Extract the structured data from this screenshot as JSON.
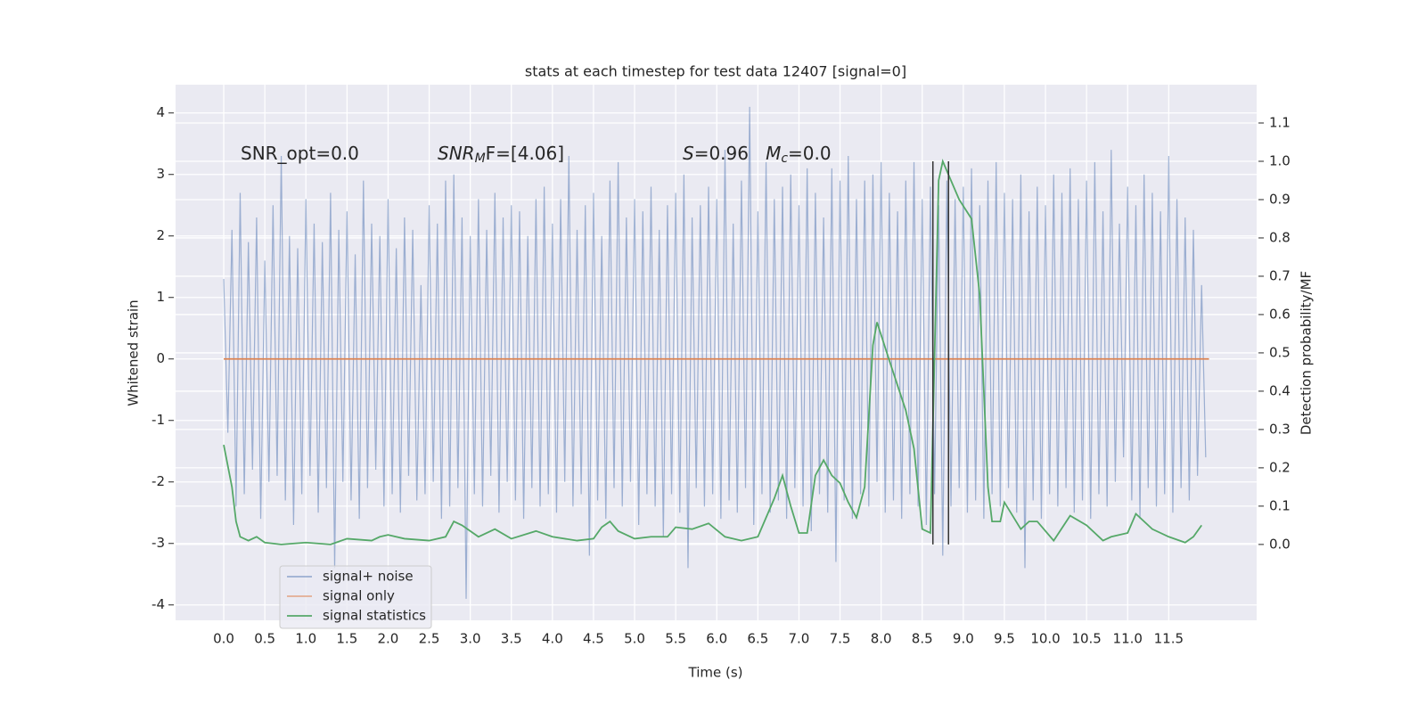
{
  "chart_data": {
    "type": "line",
    "title": "stats at each timestep for test data 12407 [signal=0]",
    "xlabel": "Time (s)",
    "ylabel": "Whitened strain",
    "y2label": "Detection probability/MF",
    "xlim": [
      -0.586,
      12.57
    ],
    "ylim": [
      -4.25,
      4.46
    ],
    "y2lim": [
      -0.198,
      1.2
    ],
    "xticks": [
      {
        "value": 0,
        "label": "0.0"
      },
      0.5,
      {
        "value": 1,
        "label": "1.0"
      },
      1.5,
      {
        "value": 2,
        "label": "2.0"
      },
      2.5,
      {
        "value": 3,
        "label": "3.0"
      },
      3.5,
      {
        "value": 4,
        "label": "4.0"
      },
      4.5,
      {
        "value": 5,
        "label": "5.0"
      },
      5.5,
      {
        "value": 6,
        "label": "6.0"
      },
      6.5,
      {
        "value": 7,
        "label": "7.0"
      },
      7.5,
      {
        "value": 8,
        "label": "8.0"
      },
      8.5,
      {
        "value": 9,
        "label": "9.0"
      },
      9.5,
      {
        "value": 10,
        "label": "10.0"
      },
      10.5,
      {
        "value": 11,
        "label": "11.0"
      },
      11.5
    ],
    "yticks": [
      -4,
      -3,
      -2,
      -1,
      0,
      1,
      2,
      3,
      4
    ],
    "y2ticks": [
      {
        "value": 0,
        "label": "0.0"
      },
      0.1,
      0.2,
      0.3,
      0.4,
      0.5,
      0.6,
      0.7,
      0.8,
      0.9,
      {
        "value": 1,
        "label": "1.0"
      },
      1.1
    ],
    "grid": true,
    "legend": "lower left",
    "annotations": [
      [
        {
          "text": "SNR_opt=0.0",
          "style": "normal"
        }
      ],
      [
        {
          "text": "SNR",
          "style": "italic"
        },
        {
          "text": "M",
          "style": "italic-sub"
        },
        {
          "text": "F=[4.06]",
          "style": "normal"
        }
      ],
      [
        {
          "text": "S",
          "style": "italic"
        },
        {
          "text": "=0.96   ",
          "style": "normal"
        },
        {
          "text": "M",
          "style": "italic"
        },
        {
          "text": "c",
          "style": "italic-sub"
        },
        {
          "text": "=0.0",
          "style": "normal"
        }
      ]
    ],
    "vlines": {
      "x": [
        8.63,
        8.82
      ],
      "y2": [
        0,
        1
      ],
      "color": "#333333"
    },
    "series": [
      {
        "name": "signal+ noise",
        "color": "#4c72b0",
        "axis": "y",
        "x": [
          0,
          0.05,
          0.1,
          0.15,
          0.2,
          0.25,
          0.3,
          0.35,
          0.4,
          0.45,
          0.5,
          0.55,
          0.6,
          0.65,
          0.7,
          0.75,
          0.8,
          0.85,
          0.9,
          0.95,
          1,
          1.05,
          1.1,
          1.15,
          1.2,
          1.25,
          1.3,
          1.35,
          1.4,
          1.45,
          1.5,
          1.55,
          1.6,
          1.65,
          1.7,
          1.75,
          1.8,
          1.85,
          1.9,
          1.95,
          2,
          2.05,
          2.1,
          2.15,
          2.2,
          2.25,
          2.3,
          2.35,
          2.4,
          2.45,
          2.5,
          2.55,
          2.6,
          2.65,
          2.7,
          2.75,
          2.8,
          2.85,
          2.9,
          2.95,
          3,
          3.05,
          3.1,
          3.15,
          3.2,
          3.25,
          3.3,
          3.35,
          3.4,
          3.45,
          3.5,
          3.55,
          3.6,
          3.65,
          3.7,
          3.75,
          3.8,
          3.85,
          3.9,
          3.95,
          4,
          4.05,
          4.1,
          4.15,
          4.2,
          4.25,
          4.3,
          4.35,
          4.4,
          4.45,
          4.5,
          4.55,
          4.6,
          4.65,
          4.7,
          4.75,
          4.8,
          4.85,
          4.9,
          4.95,
          5,
          5.05,
          5.1,
          5.15,
          5.2,
          5.25,
          5.3,
          5.35,
          5.4,
          5.45,
          5.5,
          5.55,
          5.6,
          5.65,
          5.7,
          5.75,
          5.8,
          5.85,
          5.9,
          5.95,
          6,
          6.05,
          6.1,
          6.15,
          6.2,
          6.25,
          6.3,
          6.35,
          6.4,
          6.45,
          6.5,
          6.55,
          6.6,
          6.65,
          6.7,
          6.75,
          6.8,
          6.85,
          6.9,
          6.95,
          7,
          7.05,
          7.1,
          7.15,
          7.2,
          7.25,
          7.3,
          7.35,
          7.4,
          7.45,
          7.5,
          7.55,
          7.6,
          7.65,
          7.7,
          7.75,
          7.8,
          7.85,
          7.9,
          7.95,
          8,
          8.05,
          8.1,
          8.15,
          8.2,
          8.25,
          8.3,
          8.35,
          8.4,
          8.45,
          8.5,
          8.55,
          8.6,
          8.65,
          8.7,
          8.75,
          8.8,
          8.85,
          8.9,
          8.95,
          9,
          9.05,
          9.1,
          9.15,
          9.2,
          9.25,
          9.3,
          9.35,
          9.4,
          9.45,
          9.5,
          9.55,
          9.6,
          9.65,
          9.7,
          9.75,
          9.8,
          9.85,
          9.9,
          9.95,
          10,
          10.05,
          10.1,
          10.15,
          10.2,
          10.25,
          10.3,
          10.35,
          10.4,
          10.45,
          10.5,
          10.55,
          10.6,
          10.65,
          10.7,
          10.75,
          10.8,
          10.85,
          10.9,
          10.95,
          11,
          11.05,
          11.1,
          11.15,
          11.2,
          11.25,
          11.3,
          11.35,
          11.4,
          11.45,
          11.5,
          11.55,
          11.6,
          11.65,
          11.7,
          11.75,
          11.8,
          11.85,
          11.9,
          11.95
        ],
        "values": [
          1.3,
          -1.2,
          2.1,
          -2.4,
          2.7,
          -2.2,
          1.9,
          -1.8,
          2.3,
          -2.6,
          1.6,
          -2.0,
          2.5,
          -1.9,
          3.3,
          -2.3,
          2.0,
          -2.7,
          1.8,
          -2.2,
          2.6,
          -1.9,
          2.2,
          -2.5,
          1.9,
          -2.1,
          2.7,
          -3.4,
          2.1,
          -2.0,
          2.4,
          -2.3,
          1.7,
          -2.6,
          2.9,
          -2.1,
          2.2,
          -1.8,
          2.0,
          -2.4,
          2.6,
          -2.2,
          1.8,
          -2.5,
          2.3,
          -1.9,
          2.1,
          -2.3,
          1.2,
          -2.2,
          2.5,
          -2.0,
          2.2,
          -2.6,
          2.9,
          -2.4,
          3.0,
          -2.1,
          2.3,
          -3.9,
          2.0,
          -2.2,
          2.6,
          -2.4,
          2.1,
          -1.9,
          2.7,
          -2.5,
          2.3,
          -2.0,
          2.5,
          -2.3,
          2.4,
          -2.6,
          2.0,
          -2.1,
          2.6,
          -2.4,
          2.8,
          -2.2,
          2.2,
          -2.5,
          2.6,
          -2.0,
          3.3,
          -2.4,
          2.1,
          -2.2,
          2.5,
          -3.2,
          2.7,
          -2.3,
          2.0,
          -2.6,
          2.9,
          -2.1,
          3.2,
          -2.4,
          2.3,
          -2.0,
          2.6,
          -2.7,
          2.4,
          -2.2,
          2.8,
          -2.4,
          2.1,
          -2.9,
          2.5,
          -2.2,
          2.7,
          -2.5,
          3.0,
          -3.4,
          2.3,
          -2.1,
          2.5,
          -2.4,
          2.8,
          -2.2,
          2.6,
          -2.6,
          3.4,
          -2.3,
          2.2,
          -2.5,
          2.9,
          -2.1,
          4.1,
          -2.7,
          2.4,
          -2.2,
          3.2,
          -2.5,
          2.6,
          -2.3,
          2.8,
          -2.6,
          3.0,
          -2.1,
          2.5,
          -2.4,
          3.1,
          -2.8,
          2.7,
          -2.2,
          2.3,
          -2.5,
          3.1,
          -3.3,
          2.9,
          -2.3,
          3.3,
          -2.6,
          2.6,
          -2.2,
          2.9,
          -2.4,
          3.0,
          -2.0,
          3.2,
          -2.5,
          2.7,
          -2.3,
          2.4,
          -2.6,
          2.9,
          -2.2,
          3.2,
          -2.4,
          2.6,
          -2.7,
          2.8,
          -2.2,
          2.5,
          -3.2,
          2.9,
          -2.4,
          2.6,
          -2.1,
          2.8,
          -2.5,
          3.1,
          -2.3,
          2.5,
          -2.6,
          2.9,
          -2.2,
          3.2,
          -2.4,
          2.7,
          -2.1,
          2.6,
          -2.5,
          3.0,
          -3.4,
          2.4,
          -2.3,
          2.8,
          -2.6,
          2.5,
          -2.2,
          3.0,
          -2.4,
          2.7,
          -2.1,
          3.1,
          -2.5,
          2.6,
          -2.3,
          2.9,
          -2.6,
          3.2,
          -2.2,
          2.4,
          -2.4,
          3.4,
          -2.0,
          2.2,
          -1.6,
          2.8,
          -2.3,
          2.5,
          -2.6,
          3.0,
          -2.1,
          2.7,
          -2.4,
          2.4,
          -2.2,
          3.3,
          -2.5,
          2.6,
          -2.1,
          2.3,
          -2.3,
          2.1,
          -1.9,
          1.2,
          -1.6
        ]
      },
      {
        "name": "signal only",
        "color": "#dd8452",
        "axis": "y",
        "x": [
          0,
          11.99
        ],
        "values": [
          0,
          0
        ]
      },
      {
        "name": "signal statistics",
        "color": "#55a868",
        "axis": "y2",
        "x": [
          0,
          0.1,
          0.15,
          0.2,
          0.3,
          0.4,
          0.5,
          0.7,
          1.0,
          1.3,
          1.5,
          1.8,
          1.9,
          2.0,
          2.2,
          2.5,
          2.7,
          2.8,
          2.9,
          3.1,
          3.3,
          3.5,
          3.8,
          4.0,
          4.3,
          4.5,
          4.6,
          4.7,
          4.8,
          5.0,
          5.2,
          5.4,
          5.5,
          5.7,
          5.9,
          6.1,
          6.3,
          6.5,
          6.7,
          6.8,
          6.9,
          7.0,
          7.1,
          7.2,
          7.3,
          7.4,
          7.5,
          7.6,
          7.7,
          7.8,
          7.9,
          7.95,
          8.1,
          8.3,
          8.4,
          8.5,
          8.6,
          8.7,
          8.75,
          8.85,
          8.95,
          9.1,
          9.2,
          9.3,
          9.35,
          9.45,
          9.5,
          9.7,
          9.8,
          9.9,
          10.1,
          10.3,
          10.5,
          10.7,
          10.8,
          11.0,
          11.1,
          11.3,
          11.5,
          11.7,
          11.8,
          11.9
        ],
        "values": [
          0.26,
          0.15,
          0.06,
          0.02,
          0.01,
          0.02,
          0.005,
          0.0,
          0.005,
          0.0,
          0.015,
          0.01,
          0.02,
          0.025,
          0.015,
          0.01,
          0.02,
          0.06,
          0.05,
          0.02,
          0.04,
          0.015,
          0.035,
          0.02,
          0.01,
          0.015,
          0.045,
          0.06,
          0.035,
          0.015,
          0.02,
          0.02,
          0.045,
          0.04,
          0.055,
          0.02,
          0.01,
          0.02,
          0.12,
          0.18,
          0.1,
          0.03,
          0.03,
          0.18,
          0.22,
          0.18,
          0.16,
          0.11,
          0.07,
          0.15,
          0.52,
          0.58,
          0.48,
          0.35,
          0.25,
          0.04,
          0.03,
          0.95,
          1.0,
          0.95,
          0.9,
          0.85,
          0.65,
          0.15,
          0.06,
          0.06,
          0.11,
          0.04,
          0.06,
          0.06,
          0.01,
          0.075,
          0.05,
          0.01,
          0.02,
          0.03,
          0.08,
          0.04,
          0.02,
          0.005,
          0.02,
          0.05
        ]
      }
    ]
  }
}
